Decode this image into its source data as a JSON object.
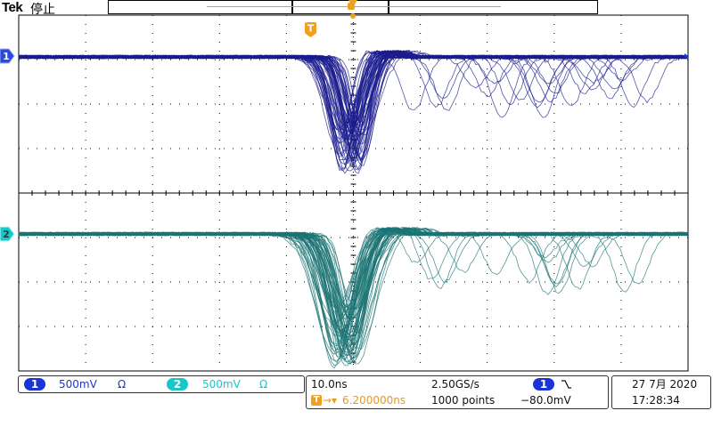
{
  "header": {
    "brand": "Tek",
    "acquisition_state": "停止"
  },
  "markers": {
    "trigger_marker": "T",
    "ch1_marker": "1",
    "ch2_marker": "2"
  },
  "channels": [
    {
      "number": "1",
      "scale": "500mV",
      "coupling": "Ω",
      "color": "#1a35d6"
    },
    {
      "number": "2",
      "scale": "500mV",
      "coupling": "Ω",
      "color": "#19c7c9"
    }
  ],
  "timebase": {
    "scale": "10.0ns",
    "sample_rate": "2.50GS/s",
    "trigger_position": "6.200000ns",
    "record_length": "1000 points"
  },
  "trigger": {
    "source": "1",
    "slope_icon": "falling-edge-icon",
    "level": "−80.0mV"
  },
  "datetime": {
    "date": "27 7月 2020",
    "time": "17:28:34"
  },
  "colors": {
    "ch1_trace": "#1b1c8e",
    "ch2_trace": "#1c7474",
    "grid": "#000000",
    "accent": "#f0a020"
  }
}
